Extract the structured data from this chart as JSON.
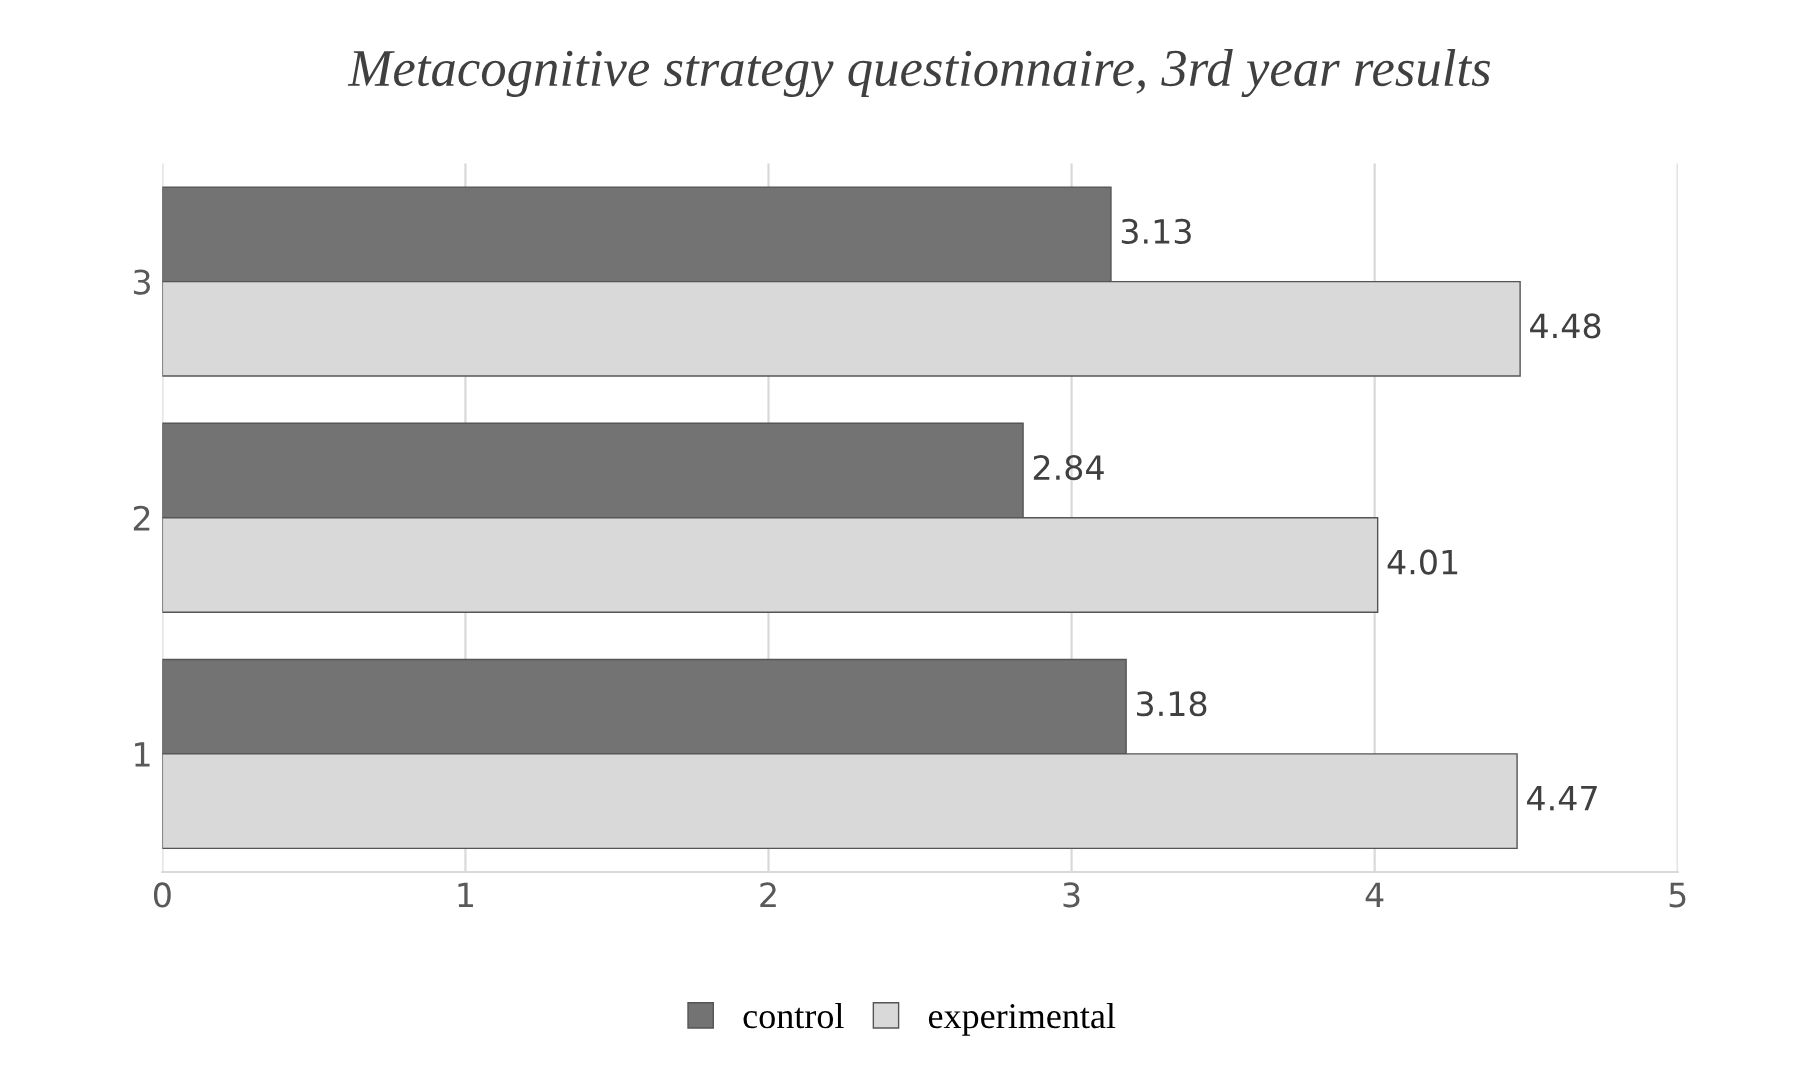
{
  "chart_data": {
    "type": "bar",
    "orientation": "horizontal",
    "title": "Metacognitive strategy questionnaire, 3rd year results",
    "categories": [
      "3",
      "2",
      "1"
    ],
    "series": [
      {
        "name": "control",
        "color": "#737373",
        "values": [
          3.13,
          2.84,
          3.18
        ]
      },
      {
        "name": "experimental",
        "color": "#d9d9d9",
        "values": [
          4.48,
          4.01,
          4.47
        ]
      }
    ],
    "xlim": [
      0,
      5
    ],
    "xticks": [
      0,
      1,
      2,
      3,
      4,
      5
    ],
    "grid": "x",
    "legend": "bottom",
    "data_labels": true
  }
}
